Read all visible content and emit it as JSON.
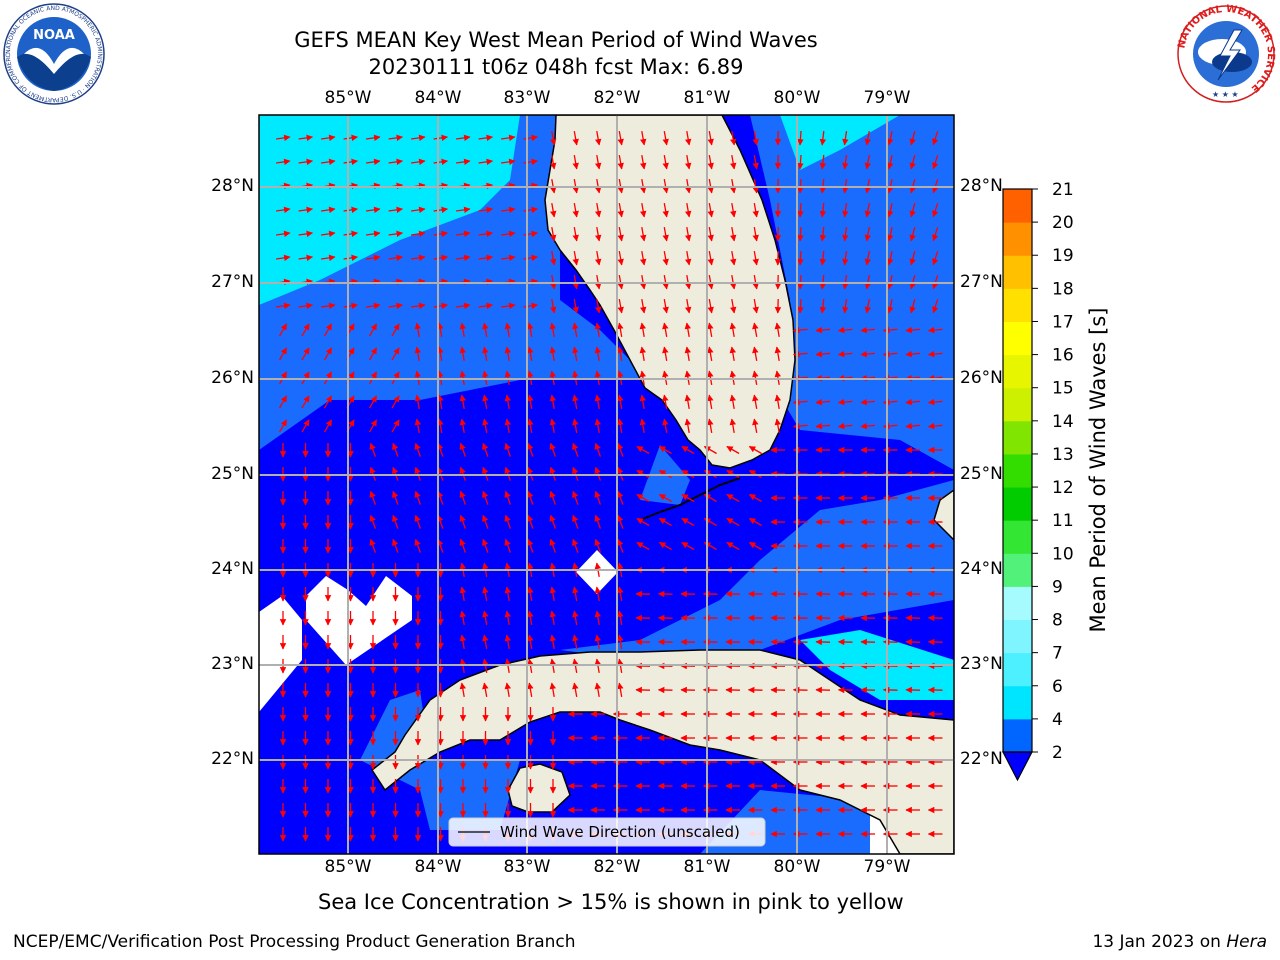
{
  "title": {
    "line1": "GEFS MEAN Key West Mean Period of Wind Waves",
    "line2": "20230111 t06z 048h fcst   Max: 6.89"
  },
  "axes": {
    "lon_labels": [
      "85°W",
      "84°W",
      "83°W",
      "82°W",
      "81°W",
      "80°W",
      "79°W"
    ],
    "lat_labels": [
      "28°N",
      "27°N",
      "26°N",
      "25°N",
      "24°N",
      "23°N",
      "22°N"
    ]
  },
  "legend": {
    "label": "Wind Wave Direction (unscaled)"
  },
  "colorbar": {
    "label": "Mean Period of Wind Waves [s]",
    "ticks": [
      "21",
      "20",
      "19",
      "18",
      "17",
      "16",
      "15",
      "14",
      "13",
      "12",
      "11",
      "10",
      "9",
      "8",
      "7",
      "6",
      "4",
      "2"
    ],
    "colors": [
      "#0066ff",
      "#00e5ff",
      "#4df0ff",
      "#7ff5ff",
      "#a6fbff",
      "#52f27a",
      "#33e633",
      "#00cc00",
      "#33dd00",
      "#80e500",
      "#ccf000",
      "#e8f500",
      "#ffff00",
      "#ffe000",
      "#ffc000",
      "#ff9000",
      "#ff6000",
      "#ff3000",
      "#ff0000"
    ]
  },
  "map_colors": {
    "land": "#eeecdc",
    "deep": "#0000ff",
    "mid": "#1a6cff",
    "light": "#00eaff",
    "arrow": "#ff0000"
  },
  "caption": "Sea Ice Concentration > 15% is shown in pink to yellow",
  "footer": {
    "left": "NCEP/EMC/Verification Post Processing Product Generation Branch",
    "right_prefix": "13 Jan 2023 on ",
    "right_host": "Hera"
  },
  "logos": {
    "noaa_text": "NOAA",
    "noaa_ring": "NATIONAL OCEANIC AND ATMOSPHERIC ADMINISTRATION · U.S. DEPARTMENT OF COMMERCE",
    "nws_ring": "NATIONAL WEATHER SERVICE"
  }
}
